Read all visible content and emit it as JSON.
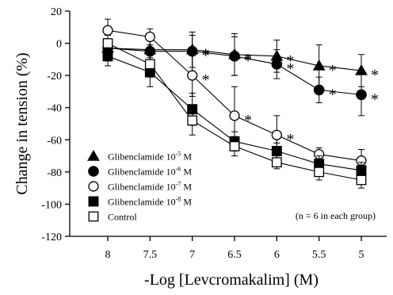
{
  "chart_data": {
    "type": "line",
    "xlabel": "-Log [Levcromakalim] (M)",
    "ylabel": "Change in tension (%)",
    "x": [
      8,
      7.5,
      7,
      6.5,
      6,
      5.5,
      5
    ],
    "x_tick_labels": [
      "8",
      "7.5",
      "7",
      "6.5",
      "6",
      "5.5",
      "5"
    ],
    "xlim": [
      8.45,
      4.7
    ],
    "x_reversed": true,
    "ylim": [
      -120,
      20
    ],
    "y_ticks": [
      20,
      0,
      -20,
      -40,
      -60,
      -80,
      -100,
      -120
    ],
    "y_tick_labels": [
      "20",
      "0",
      "-20",
      "-40",
      "-60",
      "-80",
      "-100",
      "-120"
    ],
    "grid": false,
    "legend_position": "lower-left",
    "note": "(n = 6 in each group)",
    "series": [
      {
        "name_prefix": "Glibenclamide 10",
        "name_exponent": "-5",
        "name_suffix": " M",
        "marker": "triangle-filled",
        "values": [
          -3,
          -4,
          -4,
          -7,
          -8,
          -14,
          -17
        ],
        "errors": [
          8,
          8,
          11,
          13,
          10,
          13,
          10
        ],
        "significant": [
          false,
          false,
          true,
          true,
          true,
          true,
          true
        ]
      },
      {
        "name_prefix": "Glibenclamide 10",
        "name_exponent": "-6",
        "name_suffix": " M",
        "marker": "circle-filled",
        "values": [
          -3,
          -5,
          -5,
          -8,
          -13,
          -29,
          -32
        ],
        "errors": [
          8,
          7,
          10,
          12,
          9,
          8,
          13
        ],
        "significant": [
          false,
          false,
          true,
          true,
          true,
          true,
          true
        ]
      },
      {
        "name_prefix": "Glibenclamide 10",
        "name_exponent": "-7",
        "name_suffix": " M",
        "marker": "circle-open",
        "values": [
          8,
          4,
          -20,
          -45,
          -57,
          -69,
          -73
        ],
        "errors": [
          7,
          5,
          13,
          18,
          12,
          4,
          7
        ],
        "significant": [
          false,
          false,
          true,
          true,
          true,
          false,
          false
        ]
      },
      {
        "name_prefix": "Glibenclamide 10",
        "name_exponent": "-8",
        "name_suffix": " M",
        "marker": "square-filled",
        "values": [
          -8,
          -18,
          -41,
          -61,
          -67,
          -75,
          -79
        ],
        "errors": [
          6,
          9,
          10,
          6,
          5,
          5,
          5
        ],
        "significant": [
          false,
          false,
          false,
          false,
          false,
          false,
          false
        ]
      },
      {
        "name_prefix": "Control",
        "name_exponent": "",
        "name_suffix": "",
        "marker": "square-open",
        "values": [
          0,
          -13,
          -48,
          -64,
          -74,
          -80,
          -85
        ],
        "errors": [
          5,
          8,
          9,
          6,
          4,
          5,
          5
        ],
        "significant": [
          false,
          false,
          false,
          false,
          false,
          false,
          false
        ]
      }
    ]
  },
  "significance_marker": "*"
}
